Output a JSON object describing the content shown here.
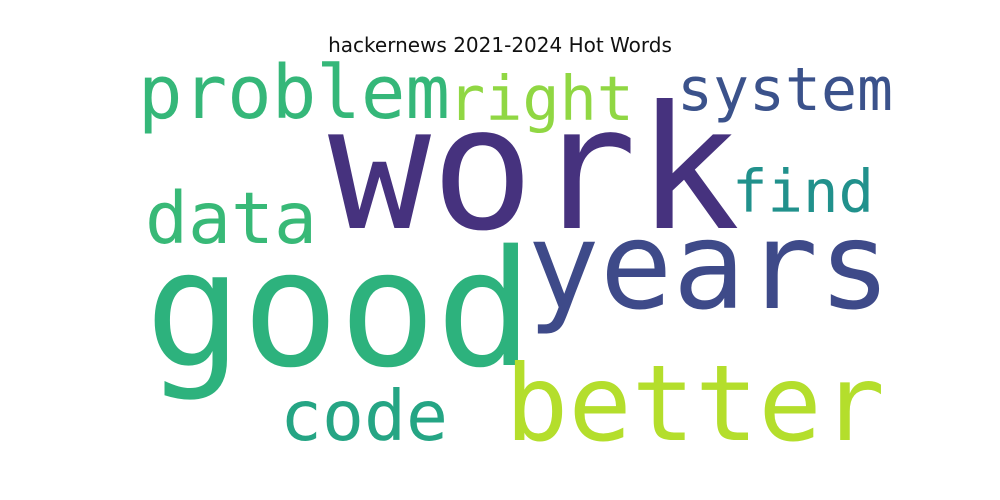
{
  "chart_data": {
    "type": "wordcloud",
    "title": "hackernews 2021-2024 Hot Words",
    "words": [
      {
        "text": "work",
        "rank": 1,
        "color": "#46327e"
      },
      {
        "text": "good",
        "rank": 2,
        "color": "#2db27d"
      },
      {
        "text": "years",
        "rank": 3,
        "color": "#3e4a89"
      },
      {
        "text": "better",
        "rank": 4,
        "color": "#b4de2c"
      },
      {
        "text": "problem",
        "rank": 5,
        "color": "#35b779"
      },
      {
        "text": "right",
        "rank": 6,
        "color": "#90d743"
      },
      {
        "text": "system",
        "rank": 7,
        "color": "#3b528b"
      },
      {
        "text": "data",
        "rank": 8,
        "color": "#38b977"
      },
      {
        "text": "find",
        "rank": 9,
        "color": "#21918c"
      },
      {
        "text": "code",
        "rank": 10,
        "color": "#25a584"
      }
    ]
  }
}
